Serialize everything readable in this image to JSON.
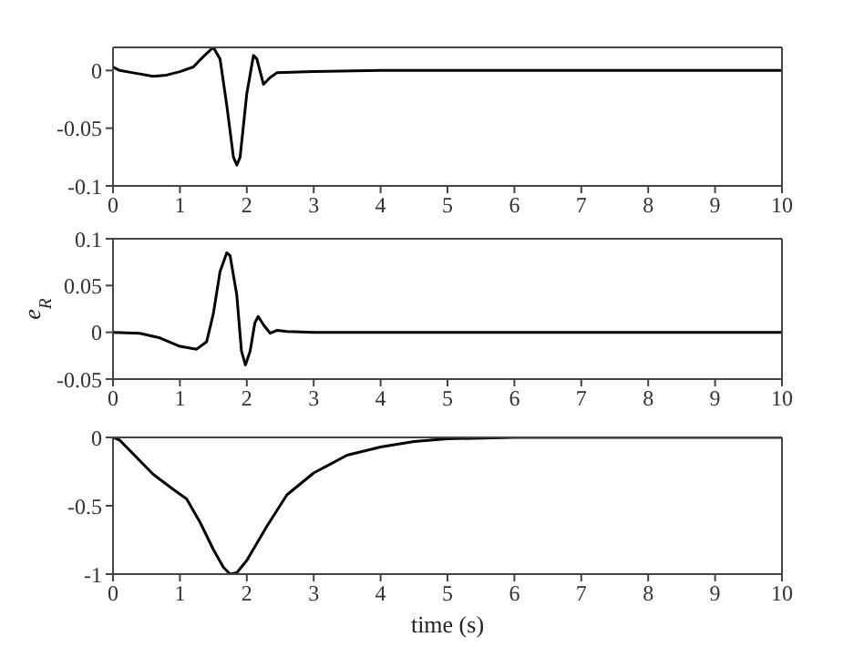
{
  "chart_data": [
    {
      "type": "line",
      "x": [
        0,
        0.1,
        0.3,
        0.6,
        0.8,
        1.0,
        1.2,
        1.35,
        1.5,
        1.6,
        1.7,
        1.8,
        1.85,
        1.9,
        2.0,
        2.1,
        2.15,
        2.25,
        2.35,
        2.45,
        3,
        4,
        10
      ],
      "series": [
        {
          "color": "#000000",
          "values": [
            0.003,
            0,
            -0.002,
            -0.005,
            -0.004,
            -0.001,
            0.003,
            0.012,
            0.02,
            0.01,
            -0.03,
            -0.075,
            -0.082,
            -0.075,
            -0.02,
            0.013,
            0.01,
            -0.012,
            -0.006,
            -0.002,
            -0.001,
            0,
            0
          ]
        }
      ],
      "xlim": [
        0,
        10
      ],
      "xticks": [
        0,
        1,
        2,
        3,
        4,
        5,
        6,
        7,
        8,
        9,
        10
      ],
      "ylim": [
        -0.1,
        0.02
      ],
      "yticks": [
        -0.1,
        -0.05,
        0
      ],
      "grid": false,
      "legend": false,
      "marker": "none",
      "line_style": "solid"
    },
    {
      "type": "line",
      "ylabel": "e$_{R}$",
      "x": [
        0,
        0.4,
        0.7,
        1.0,
        1.25,
        1.4,
        1.5,
        1.6,
        1.7,
        1.75,
        1.85,
        1.92,
        1.98,
        2.05,
        2.12,
        2.17,
        2.25,
        2.35,
        2.45,
        2.6,
        3,
        10
      ],
      "series": [
        {
          "color": "#000000",
          "values": [
            0,
            -0.001,
            -0.006,
            -0.015,
            -0.018,
            -0.01,
            0.02,
            0.065,
            0.085,
            0.082,
            0.04,
            -0.02,
            -0.035,
            -0.02,
            0.01,
            0.017,
            0.008,
            -0.001,
            0.002,
            0.001,
            0,
            0
          ]
        }
      ],
      "xlim": [
        0,
        10
      ],
      "xticks": [
        0,
        1,
        2,
        3,
        4,
        5,
        6,
        7,
        8,
        9,
        10
      ],
      "ylim": [
        -0.05,
        0.1
      ],
      "yticks": [
        -0.05,
        0,
        0.05,
        0.1
      ],
      "grid": false,
      "legend": false,
      "marker": "none",
      "line_style": "solid"
    },
    {
      "type": "line",
      "xlabel": "time (s)",
      "x": [
        0,
        0.1,
        0.3,
        0.6,
        0.9,
        1.1,
        1.3,
        1.5,
        1.65,
        1.75,
        1.85,
        2.0,
        2.3,
        2.6,
        3,
        3.5,
        4,
        4.5,
        5,
        6,
        7,
        10
      ],
      "series": [
        {
          "color": "#000000",
          "values": [
            0,
            -0.02,
            -0.12,
            -0.27,
            -0.38,
            -0.45,
            -0.62,
            -0.82,
            -0.95,
            -1,
            -0.99,
            -0.9,
            -0.65,
            -0.42,
            -0.26,
            -0.13,
            -0.07,
            -0.03,
            -0.01,
            0,
            0,
            0
          ]
        }
      ],
      "xlim": [
        0,
        10
      ],
      "xticks": [
        0,
        1,
        2,
        3,
        4,
        5,
        6,
        7,
        8,
        9,
        10
      ],
      "ylim": [
        -1,
        0
      ],
      "yticks": [
        -1,
        -0.5,
        0
      ],
      "grid": false,
      "legend": false,
      "marker": "none",
      "line_style": "solid"
    }
  ]
}
